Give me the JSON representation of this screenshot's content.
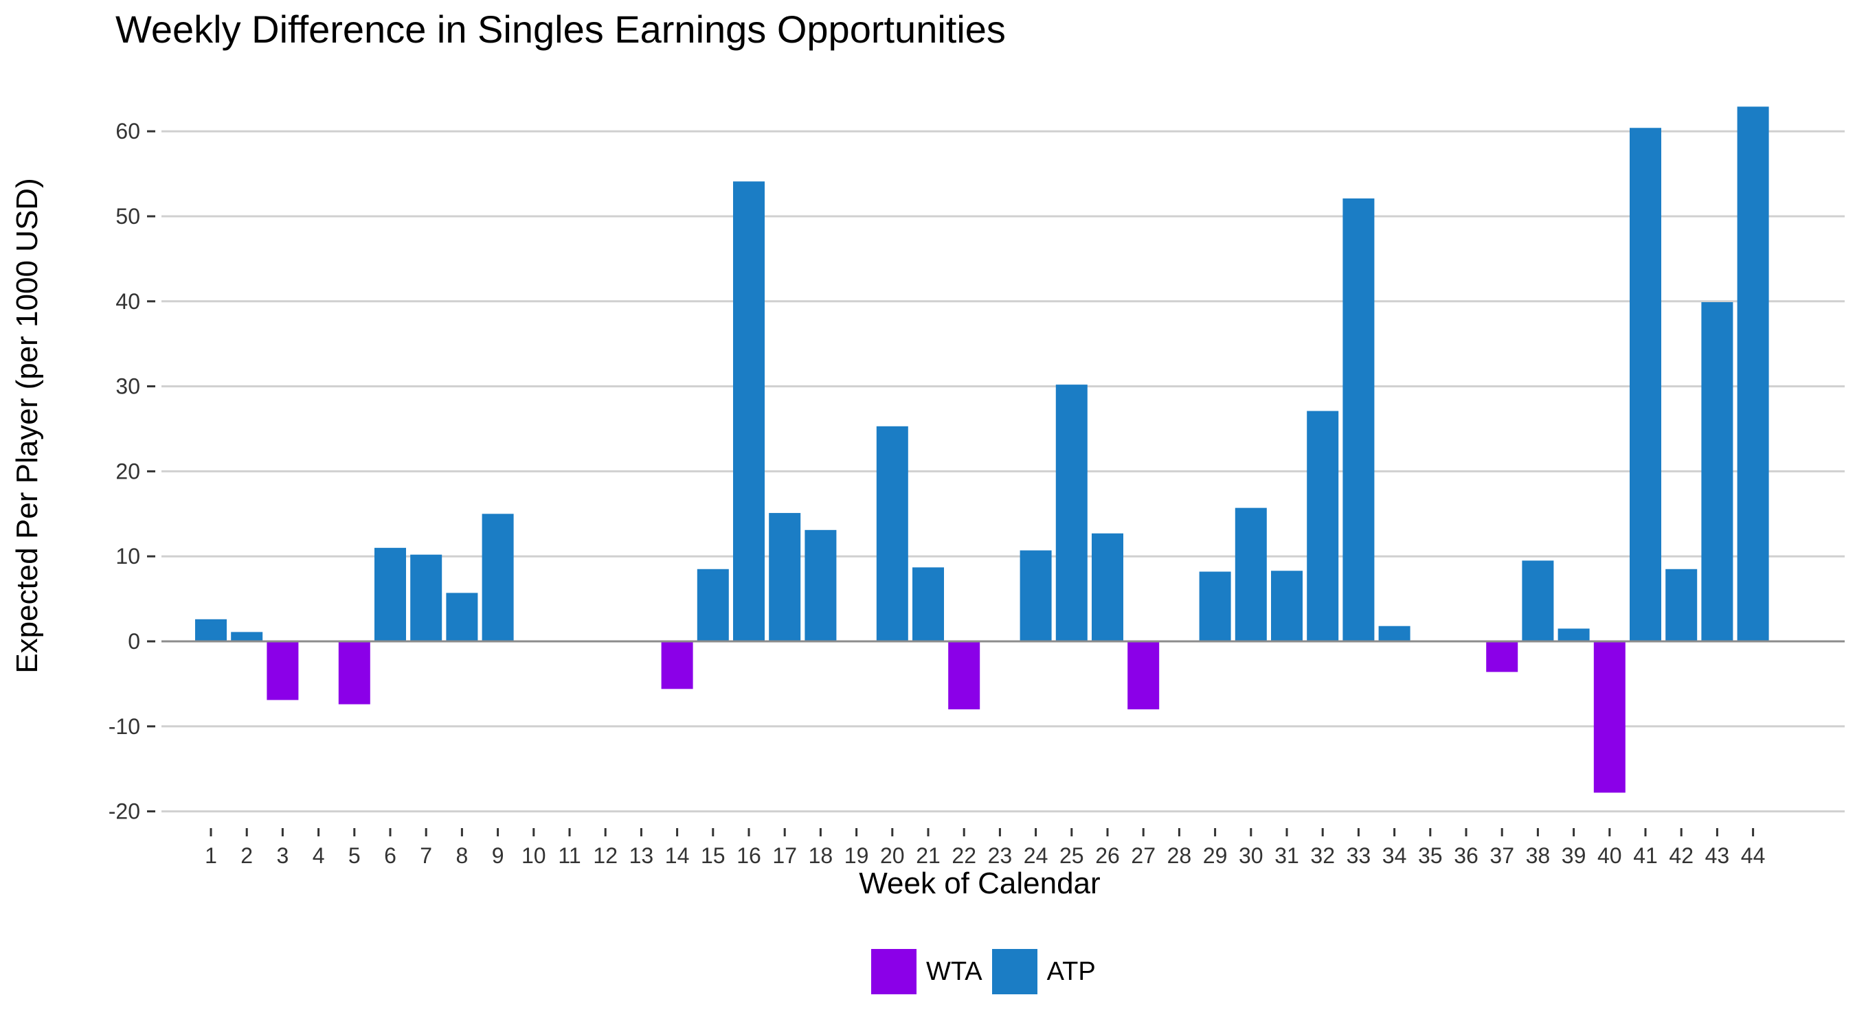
{
  "chart_data": {
    "type": "bar",
    "title": "Weekly Difference in Singles Earnings Opportunities",
    "xlabel": "Week of Calendar",
    "ylabel": "Expected Per Player (per 1000 USD)",
    "ylim": [
      -22,
      66
    ],
    "yticks": [
      -20,
      -10,
      0,
      10,
      20,
      30,
      40,
      50,
      60
    ],
    "grid": true,
    "legend_position": "bottom",
    "categories": [
      "1",
      "2",
      "3",
      "4",
      "5",
      "6",
      "7",
      "8",
      "9",
      "10",
      "11",
      "12",
      "13",
      "14",
      "15",
      "16",
      "17",
      "18",
      "19",
      "20",
      "21",
      "22",
      "23",
      "24",
      "25",
      "26",
      "27",
      "28",
      "29",
      "30",
      "31",
      "32",
      "33",
      "34",
      "35",
      "36",
      "37",
      "38",
      "39",
      "40",
      "41",
      "42",
      "43",
      "44"
    ],
    "values": [
      2.6,
      1.1,
      -6.9,
      0,
      -7.4,
      11.0,
      10.2,
      5.7,
      15.0,
      0,
      0,
      0,
      0,
      -5.6,
      8.5,
      54.1,
      15.1,
      13.1,
      0,
      25.3,
      8.7,
      -8.0,
      0,
      10.7,
      30.2,
      12.7,
      -8.0,
      0,
      8.2,
      15.7,
      8.3,
      27.1,
      52.1,
      1.8,
      0,
      0,
      -3.6,
      9.5,
      1.5,
      -17.8,
      60.4,
      8.5,
      39.9,
      62.9
    ],
    "series": [
      {
        "name": "WTA",
        "color": "#8b00e8"
      },
      {
        "name": "ATP",
        "color": "#1b7dc5"
      }
    ]
  }
}
